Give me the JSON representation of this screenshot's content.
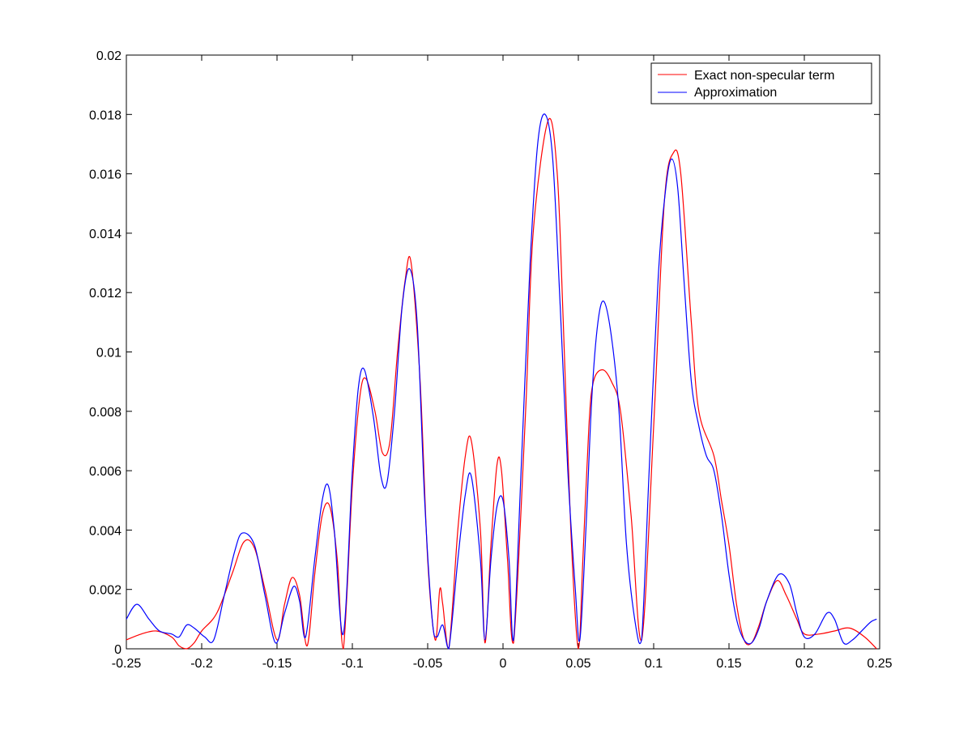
{
  "chart_data": {
    "type": "line",
    "title": "",
    "xlabel": "",
    "ylabel": "",
    "xlim": [
      -0.25,
      0.25
    ],
    "ylim": [
      0,
      0.02
    ],
    "xticks": [
      "-0.25",
      "-0.2",
      "-0.15",
      "-0.1",
      "-0.05",
      "0",
      "0.05",
      "0.1",
      "0.15",
      "0.2",
      "0.25"
    ],
    "yticks": [
      "0",
      "0.002",
      "0.004",
      "0.006",
      "0.008",
      "0.01",
      "0.012",
      "0.014",
      "0.016",
      "0.018",
      "0.02"
    ],
    "grid": false,
    "legend_position": "top-right",
    "series": [
      {
        "name": "Exact non-specular term",
        "color": "#ff0000",
        "x": [
          -0.25,
          -0.24,
          -0.23,
          -0.22,
          -0.215,
          -0.21,
          -0.205,
          -0.2,
          -0.19,
          -0.18,
          -0.172,
          -0.165,
          -0.158,
          -0.15,
          -0.145,
          -0.14,
          -0.135,
          -0.13,
          -0.125,
          -0.12,
          -0.115,
          -0.11,
          -0.106,
          -0.1,
          -0.095,
          -0.091,
          -0.085,
          -0.08,
          -0.075,
          -0.07,
          -0.065,
          -0.061,
          -0.055,
          -0.05,
          -0.045,
          -0.042,
          -0.04,
          -0.036,
          -0.03,
          -0.025,
          -0.021,
          -0.015,
          -0.012,
          -0.008,
          -0.004,
          -0.001,
          0.003,
          0.007,
          0.015,
          0.02,
          0.03,
          0.036,
          0.04,
          0.045,
          0.05,
          0.053,
          0.057,
          0.06,
          0.066,
          0.072,
          0.078,
          0.085,
          0.092,
          0.1,
          0.107,
          0.113,
          0.118,
          0.125,
          0.13,
          0.14,
          0.145,
          0.15,
          0.155,
          0.16,
          0.165,
          0.17,
          0.175,
          0.182,
          0.188,
          0.195,
          0.2,
          0.21,
          0.22,
          0.23,
          0.24,
          0.248
        ],
        "values": [
          0.0003,
          0.0005,
          0.0006,
          0.0004,
          0.0001,
          0.0,
          0.0002,
          0.0006,
          0.0012,
          0.0025,
          0.0036,
          0.0034,
          0.002,
          0.0003,
          0.0015,
          0.0024,
          0.0018,
          0.0001,
          0.0025,
          0.0045,
          0.0048,
          0.003,
          0.0,
          0.0055,
          0.0085,
          0.0091,
          0.008,
          0.0066,
          0.007,
          0.01,
          0.0124,
          0.013,
          0.009,
          0.003,
          0.0003,
          0.002,
          0.0015,
          0.0,
          0.004,
          0.0065,
          0.007,
          0.004,
          0.0002,
          0.0035,
          0.0062,
          0.006,
          0.003,
          0.0002,
          0.008,
          0.014,
          0.0178,
          0.016,
          0.011,
          0.004,
          0.0,
          0.003,
          0.0075,
          0.009,
          0.0094,
          0.009,
          0.008,
          0.0045,
          0.0003,
          0.0075,
          0.015,
          0.0167,
          0.016,
          0.011,
          0.008,
          0.0065,
          0.005,
          0.0035,
          0.0015,
          0.0003,
          0.0002,
          0.0008,
          0.0016,
          0.0023,
          0.0018,
          0.001,
          0.0005,
          0.0005,
          0.0006,
          0.0007,
          0.0004,
          0.0
        ]
      },
      {
        "name": "Approximation",
        "color": "#0000ff",
        "x": [
          -0.25,
          -0.243,
          -0.235,
          -0.228,
          -0.22,
          -0.215,
          -0.21,
          -0.205,
          -0.198,
          -0.192,
          -0.185,
          -0.178,
          -0.173,
          -0.165,
          -0.158,
          -0.151,
          -0.145,
          -0.139,
          -0.135,
          -0.131,
          -0.125,
          -0.12,
          -0.116,
          -0.112,
          -0.106,
          -0.1,
          -0.096,
          -0.092,
          -0.086,
          -0.081,
          -0.077,
          -0.072,
          -0.067,
          -0.062,
          -0.057,
          -0.052,
          -0.047,
          -0.044,
          -0.04,
          -0.036,
          -0.03,
          -0.025,
          -0.021,
          -0.015,
          -0.012,
          -0.008,
          -0.004,
          0.0,
          0.004,
          0.007,
          0.012,
          0.018,
          0.023,
          0.028,
          0.033,
          0.038,
          0.043,
          0.048,
          0.051,
          0.055,
          0.059,
          0.063,
          0.067,
          0.072,
          0.077,
          0.082,
          0.088,
          0.092,
          0.097,
          0.103,
          0.108,
          0.112,
          0.116,
          0.12,
          0.125,
          0.13,
          0.135,
          0.14,
          0.145,
          0.15,
          0.155,
          0.16,
          0.165,
          0.17,
          0.175,
          0.183,
          0.19,
          0.195,
          0.2,
          0.207,
          0.215,
          0.22,
          0.226,
          0.232,
          0.238,
          0.244,
          0.248
        ],
        "values": [
          0.001,
          0.0015,
          0.001,
          0.0006,
          0.0005,
          0.0004,
          0.0008,
          0.0007,
          0.0004,
          0.0003,
          0.0018,
          0.0033,
          0.0039,
          0.0035,
          0.0018,
          0.0002,
          0.0012,
          0.0021,
          0.0016,
          0.0004,
          0.003,
          0.005,
          0.0055,
          0.004,
          0.0005,
          0.006,
          0.0088,
          0.0094,
          0.0078,
          0.0058,
          0.0056,
          0.008,
          0.0115,
          0.0128,
          0.011,
          0.005,
          0.001,
          0.0004,
          0.0008,
          0.0,
          0.003,
          0.0052,
          0.0058,
          0.003,
          0.0003,
          0.003,
          0.0048,
          0.005,
          0.003,
          0.0003,
          0.006,
          0.013,
          0.017,
          0.018,
          0.0165,
          0.0115,
          0.006,
          0.002,
          0.0003,
          0.004,
          0.0085,
          0.011,
          0.0117,
          0.0105,
          0.008,
          0.0035,
          0.0008,
          0.0003,
          0.006,
          0.0125,
          0.0155,
          0.0165,
          0.0155,
          0.0125,
          0.009,
          0.0075,
          0.0065,
          0.006,
          0.0045,
          0.0025,
          0.001,
          0.0003,
          0.0002,
          0.0007,
          0.0016,
          0.0025,
          0.0022,
          0.0012,
          0.0004,
          0.0005,
          0.0012,
          0.001,
          0.0002,
          0.0003,
          0.0006,
          0.0009,
          0.001
        ]
      }
    ]
  }
}
